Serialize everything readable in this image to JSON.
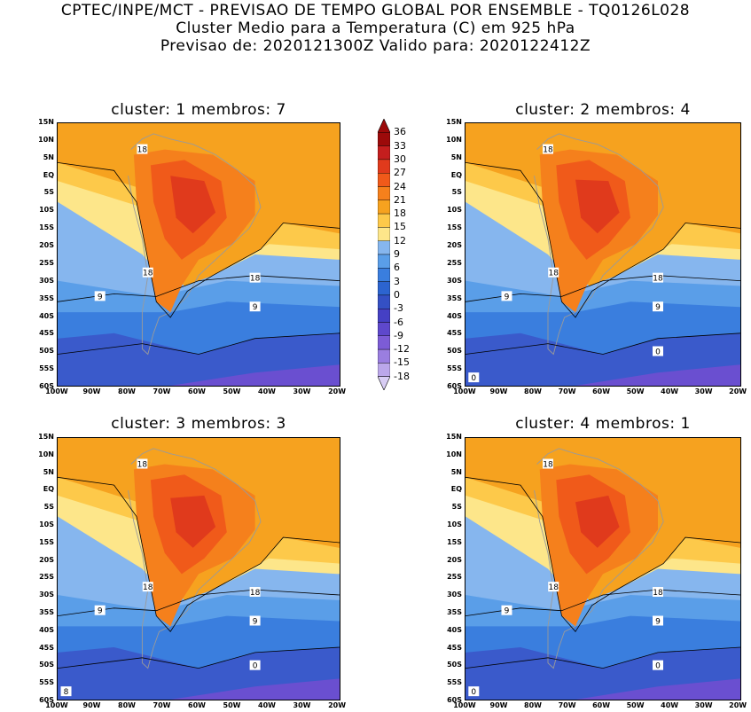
{
  "header": {
    "line1": "CPTEC/INPE/MCT - PREVISAO DE TEMPO GLOBAL POR ENSEMBLE - TQ0126L028",
    "line2": "Cluster Medio para a Temperatura (C) em 925 hPa",
    "line3": "Previsao de: 2020121300Z   Valido para: 2020122412Z"
  },
  "axes": {
    "lat_ticks": [
      "15N",
      "10N",
      "5N",
      "EQ",
      "5S",
      "10S",
      "15S",
      "20S",
      "25S",
      "30S",
      "35S",
      "40S",
      "45S",
      "50S",
      "55S",
      "60S"
    ],
    "lon_ticks": [
      "100W",
      "90W",
      "80W",
      "70W",
      "60W",
      "50W",
      "40W",
      "30W",
      "20W"
    ]
  },
  "colorbar": {
    "levels": [
      "36",
      "33",
      "30",
      "27",
      "24",
      "21",
      "18",
      "15",
      "12",
      "9",
      "6",
      "3",
      "0",
      "-3",
      "-6",
      "-9",
      "-12",
      "-15",
      "-18"
    ],
    "colors": [
      "#9c0a0a",
      "#c41e1e",
      "#e03a1c",
      "#f05a1a",
      "#f5801c",
      "#f6a21f",
      "#fdc94a",
      "#fde68a",
      "#86b6ee",
      "#5a9ee8",
      "#3a7ede",
      "#2c64d0",
      "#3450c4",
      "#4540c4",
      "#5e48cc",
      "#7c5cd6",
      "#9a7ee0",
      "#bba7ea",
      "#d8cdf4"
    ]
  },
  "panels": [
    {
      "title": "cluster: 1   membros: 7",
      "labels": [
        "18",
        "18",
        "18",
        "9",
        "9"
      ]
    },
    {
      "title": "cluster: 2   membros: 4",
      "labels": [
        "18",
        "18",
        "18",
        "9",
        "9",
        "0",
        "0"
      ]
    },
    {
      "title": "cluster: 3   membros: 3",
      "labels": [
        "18",
        "18",
        "18",
        "9",
        "9",
        "0",
        "8"
      ]
    },
    {
      "title": "cluster: 4   membros: 1",
      "labels": [
        "18",
        "18",
        "18",
        "9",
        "9",
        "0",
        "0"
      ]
    }
  ]
}
